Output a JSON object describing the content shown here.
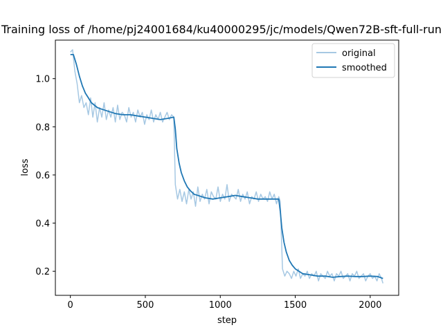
{
  "chart_data": {
    "type": "line",
    "title": "Training loss of /home/pj24001684/ku40000295/jc/models/Qwen72B-sft-full-run",
    "xlabel": "step",
    "ylabel": "loss",
    "xlim": [
      -100,
      2190
    ],
    "ylim": [
      0.1,
      1.16
    ],
    "xticks": [
      0,
      500,
      1000,
      1500,
      2000
    ],
    "yticks": [
      0.2,
      0.4,
      0.6,
      0.8,
      1.0
    ],
    "xtick_labels": [
      "0",
      "500",
      "1000",
      "1500",
      "2000"
    ],
    "ytick_labels": [
      "0.2",
      "0.4",
      "0.6",
      "0.8",
      "1.0"
    ],
    "grid": false,
    "legend_position": "top-right",
    "series": [
      {
        "name": "original",
        "color": "#a6c8e3",
        "x": [
          0,
          15,
          30,
          45,
          60,
          75,
          90,
          105,
          120,
          135,
          150,
          165,
          180,
          195,
          210,
          225,
          240,
          255,
          270,
          285,
          300,
          315,
          330,
          345,
          360,
          375,
          390,
          405,
          420,
          435,
          450,
          465,
          480,
          495,
          510,
          525,
          540,
          555,
          570,
          585,
          600,
          615,
          630,
          645,
          660,
          675,
          690,
          700,
          715,
          730,
          745,
          760,
          775,
          790,
          805,
          820,
          835,
          850,
          865,
          880,
          895,
          910,
          925,
          940,
          955,
          970,
          985,
          1000,
          1015,
          1030,
          1045,
          1060,
          1075,
          1090,
          1105,
          1120,
          1135,
          1150,
          1165,
          1180,
          1195,
          1210,
          1225,
          1240,
          1255,
          1270,
          1285,
          1300,
          1315,
          1330,
          1345,
          1360,
          1375,
          1390,
          1400,
          1415,
          1430,
          1445,
          1460,
          1475,
          1490,
          1505,
          1520,
          1535,
          1550,
          1565,
          1580,
          1595,
          1610,
          1625,
          1640,
          1655,
          1670,
          1685,
          1700,
          1715,
          1730,
          1745,
          1760,
          1775,
          1790,
          1805,
          1820,
          1835,
          1850,
          1865,
          1880,
          1895,
          1910,
          1925,
          1940,
          1955,
          1970,
          1985,
          2000,
          2015,
          2030,
          2045,
          2060,
          2075,
          2085
        ],
        "y": [
          1.11,
          1.12,
          1.03,
          0.98,
          0.9,
          0.93,
          0.88,
          0.9,
          0.85,
          0.92,
          0.84,
          0.9,
          0.82,
          0.88,
          0.84,
          0.9,
          0.83,
          0.87,
          0.84,
          0.88,
          0.82,
          0.89,
          0.83,
          0.86,
          0.85,
          0.82,
          0.88,
          0.84,
          0.86,
          0.82,
          0.87,
          0.84,
          0.86,
          0.81,
          0.85,
          0.83,
          0.87,
          0.82,
          0.85,
          0.83,
          0.86,
          0.82,
          0.84,
          0.86,
          0.83,
          0.85,
          0.84,
          0.56,
          0.5,
          0.54,
          0.49,
          0.53,
          0.48,
          0.54,
          0.5,
          0.53,
          0.47,
          0.55,
          0.49,
          0.52,
          0.5,
          0.54,
          0.48,
          0.53,
          0.51,
          0.5,
          0.55,
          0.49,
          0.52,
          0.5,
          0.56,
          0.49,
          0.52,
          0.51,
          0.5,
          0.54,
          0.49,
          0.52,
          0.5,
          0.53,
          0.48,
          0.51,
          0.5,
          0.53,
          0.49,
          0.52,
          0.5,
          0.51,
          0.49,
          0.53,
          0.5,
          0.52,
          0.48,
          0.51,
          0.49,
          0.21,
          0.18,
          0.2,
          0.19,
          0.17,
          0.2,
          0.18,
          0.21,
          0.17,
          0.19,
          0.18,
          0.2,
          0.17,
          0.19,
          0.18,
          0.2,
          0.16,
          0.19,
          0.18,
          0.17,
          0.2,
          0.18,
          0.19,
          0.16,
          0.19,
          0.18,
          0.2,
          0.17,
          0.18,
          0.19,
          0.16,
          0.19,
          0.18,
          0.2,
          0.17,
          0.18,
          0.19,
          0.16,
          0.18,
          0.19,
          0.17,
          0.18,
          0.16,
          0.19,
          0.17,
          0.15
        ]
      },
      {
        "name": "smoothed",
        "color": "#1f77b4",
        "x": [
          0,
          20,
          40,
          60,
          80,
          100,
          120,
          140,
          160,
          180,
          200,
          250,
          300,
          350,
          400,
          450,
          500,
          550,
          600,
          650,
          690,
          700,
          710,
          725,
          740,
          760,
          780,
          800,
          825,
          850,
          875,
          900,
          950,
          1000,
          1050,
          1100,
          1150,
          1200,
          1250,
          1300,
          1350,
          1390,
          1400,
          1410,
          1425,
          1440,
          1460,
          1480,
          1500,
          1525,
          1550,
          1600,
          1650,
          1700,
          1750,
          1800,
          1850,
          1900,
          1950,
          2000,
          2050,
          2085
        ],
        "y": [
          1.1,
          1.1,
          1.06,
          1.01,
          0.97,
          0.94,
          0.92,
          0.9,
          0.89,
          0.88,
          0.875,
          0.865,
          0.855,
          0.85,
          0.85,
          0.845,
          0.84,
          0.835,
          0.83,
          0.835,
          0.84,
          0.79,
          0.71,
          0.65,
          0.61,
          0.575,
          0.55,
          0.535,
          0.52,
          0.515,
          0.51,
          0.505,
          0.5,
          0.505,
          0.51,
          0.515,
          0.51,
          0.505,
          0.5,
          0.5,
          0.5,
          0.5,
          0.45,
          0.38,
          0.32,
          0.28,
          0.245,
          0.225,
          0.21,
          0.2,
          0.19,
          0.185,
          0.18,
          0.18,
          0.175,
          0.178,
          0.18,
          0.178,
          0.178,
          0.18,
          0.178,
          0.17
        ]
      }
    ]
  }
}
